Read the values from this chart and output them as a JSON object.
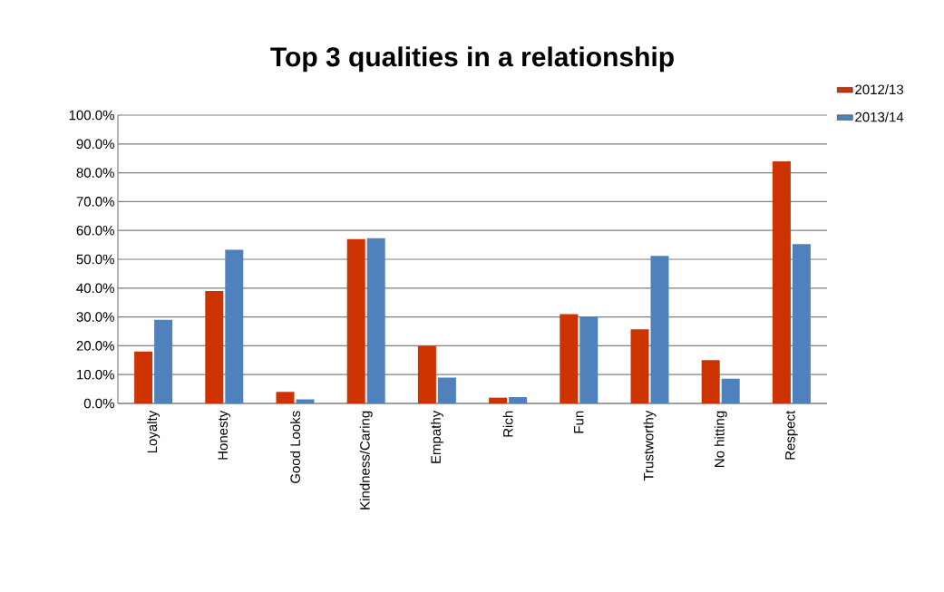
{
  "chart_data": {
    "type": "bar",
    "title": "Top 3 qualities in a relationship",
    "categories": [
      "Loyalty",
      "Honesty",
      "Good Looks",
      "Kindness/Caring",
      "Empathy",
      "Rich",
      "Fun",
      "Trustworthy",
      "No hitting",
      "Respect"
    ],
    "series": [
      {
        "name": "2012/13",
        "color": "#cc3300",
        "values": [
          18,
          39,
          4,
          57,
          20,
          2,
          31,
          25.7,
          15,
          84
        ]
      },
      {
        "name": "2013/14",
        "color": "#4f81bd",
        "values": [
          29,
          53.3,
          1.4,
          57.3,
          9,
          2.2,
          30.1,
          51.2,
          8.6,
          55.3
        ]
      }
    ],
    "ylim": [
      0,
      100
    ],
    "yticks": [
      {
        "value": 0,
        "label": "0.0%"
      },
      {
        "value": 10,
        "label": "10.0%"
      },
      {
        "value": 20,
        "label": "20.0%"
      },
      {
        "value": 30,
        "label": "30.0%"
      },
      {
        "value": 40,
        "label": "40.0%"
      },
      {
        "value": 50,
        "label": "50.0%"
      },
      {
        "value": 60,
        "label": "60.0%"
      },
      {
        "value": 70,
        "label": "70.0%"
      },
      {
        "value": 80,
        "label": "80.0%"
      },
      {
        "value": 90,
        "label": "90.0%"
      },
      {
        "value": 100,
        "label": "100.0%"
      }
    ],
    "grid": "y",
    "legend": "top right"
  }
}
